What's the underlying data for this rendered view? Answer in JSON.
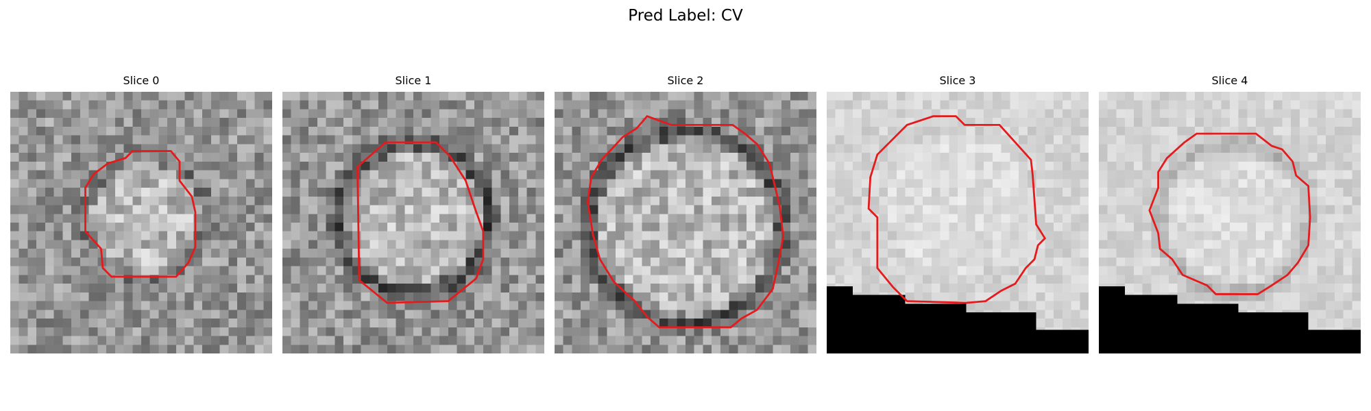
{
  "figure": {
    "title": "Pred Label: CV"
  },
  "colors": {
    "contour": "#e41a1c",
    "mask": "#000000"
  },
  "panels": [
    {
      "title": "Slice 0",
      "tone": "mid",
      "ring": "faint",
      "mask": false
    },
    {
      "title": "Slice 1",
      "tone": "mid",
      "ring": "strong",
      "mask": false
    },
    {
      "title": "Slice 2",
      "tone": "mid",
      "ring": "strong",
      "mask": false
    },
    {
      "title": "Slice 3",
      "tone": "light",
      "ring": "none",
      "mask": true
    },
    {
      "title": "Slice 4",
      "tone": "light",
      "ring": "faint",
      "mask": true
    }
  ]
}
